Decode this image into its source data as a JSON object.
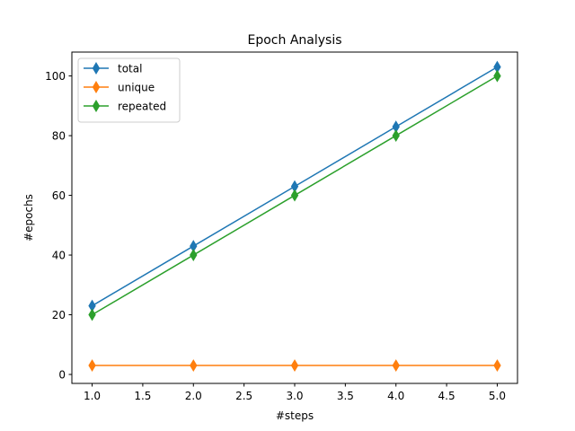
{
  "chart_data": {
    "type": "line",
    "title": "Epoch Analysis",
    "xlabel": "#steps",
    "ylabel": "#epochs",
    "x": [
      1.0,
      2.0,
      3.0,
      4.0,
      5.0
    ],
    "xlim": [
      0.8,
      5.2
    ],
    "ylim": [
      -3.0,
      108.0
    ],
    "xticks": [
      "1.0",
      "1.5",
      "2.0",
      "2.5",
      "3.0",
      "3.5",
      "4.0",
      "4.5",
      "5.0"
    ],
    "xtick_values": [
      1.0,
      1.5,
      2.0,
      2.5,
      3.0,
      3.5,
      4.0,
      4.5,
      5.0
    ],
    "yticks": [
      "0",
      "20",
      "40",
      "60",
      "80",
      "100"
    ],
    "ytick_values": [
      0,
      20,
      40,
      60,
      80,
      100
    ],
    "grid": false,
    "legend_position": "top-left",
    "marker": "thin-diamond",
    "series": [
      {
        "name": "total",
        "color": "#1f77b4",
        "values": [
          23,
          43,
          63,
          83,
          103
        ]
      },
      {
        "name": "unique",
        "color": "#ff7f0e",
        "values": [
          3,
          3,
          3,
          3,
          3
        ]
      },
      {
        "name": "repeated",
        "color": "#2ca02c",
        "values": [
          20,
          40,
          60,
          80,
          100
        ]
      }
    ]
  }
}
